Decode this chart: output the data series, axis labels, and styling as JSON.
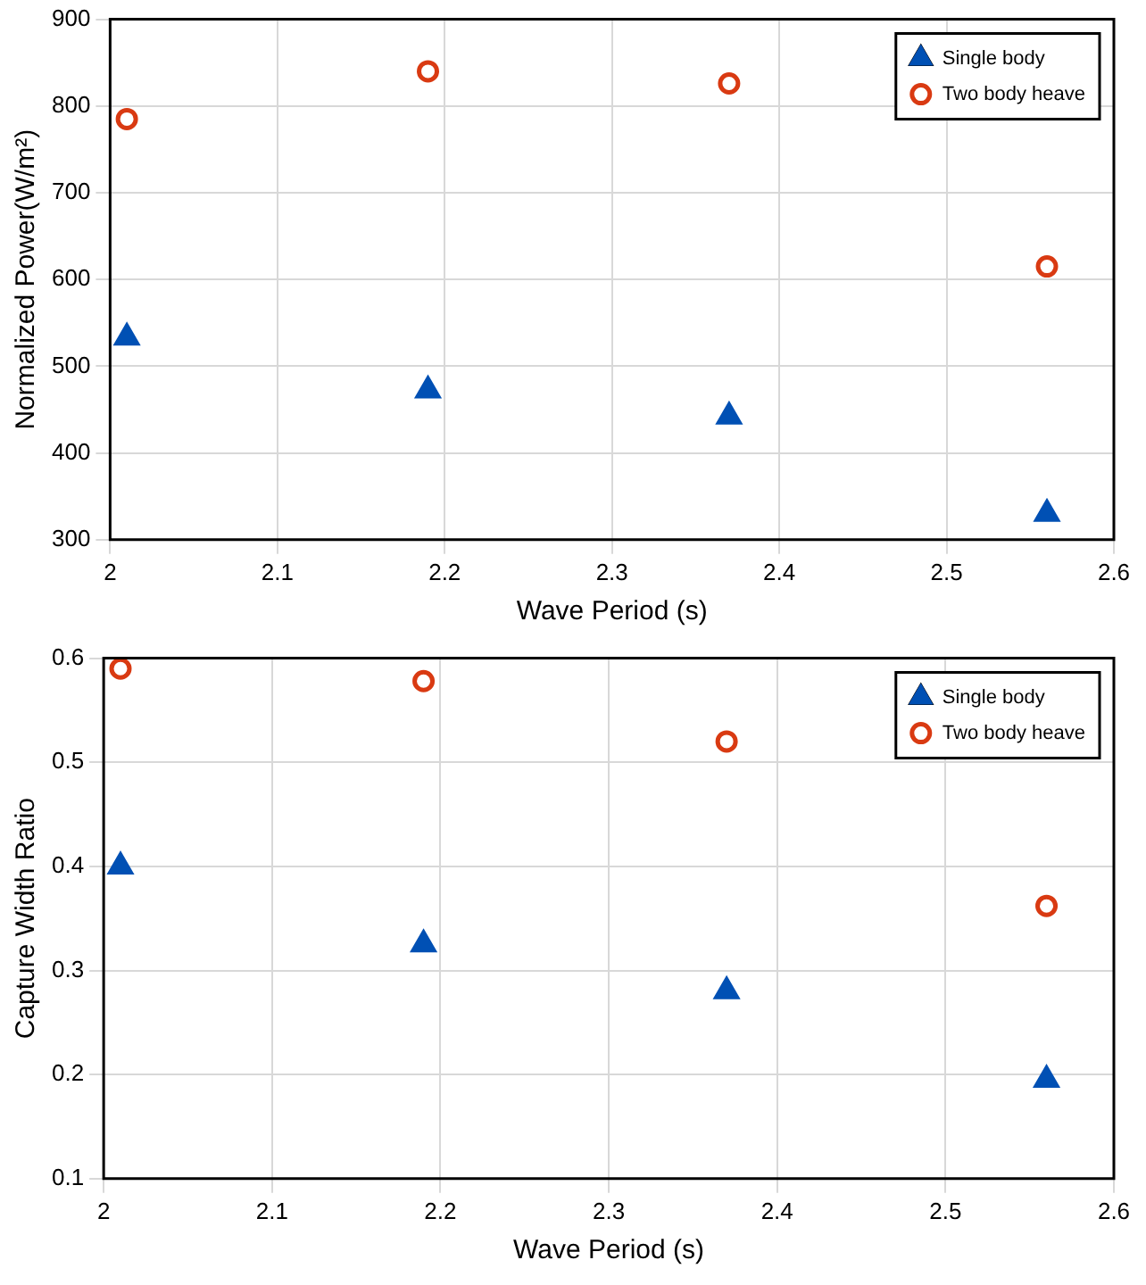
{
  "chart_data": [
    {
      "type": "scatter",
      "xlabel": "Wave Period (s)",
      "ylabel": "Normalized Power(W/m²)",
      "xlim": [
        2,
        2.6
      ],
      "xticks": [
        2,
        2.1,
        2.2,
        2.3,
        2.4,
        2.5,
        2.6
      ],
      "ylim": [
        300,
        900
      ],
      "yticks": [
        300,
        400,
        500,
        600,
        700,
        800,
        900
      ],
      "grid": true,
      "legend": "top right",
      "series": [
        {
          "name": "Single body",
          "color": "#0050b4",
          "marker": "triangle",
          "x": [
            2.01,
            2.19,
            2.37,
            2.56
          ],
          "values": [
            533,
            472,
            442,
            330
          ]
        },
        {
          "name": "Two body heave",
          "color": "#d93a12",
          "marker": "circle",
          "x": [
            2.01,
            2.19,
            2.37,
            2.56
          ],
          "values": [
            785,
            840,
            826,
            615
          ]
        }
      ]
    },
    {
      "type": "scatter",
      "xlabel": "Wave Period (s)",
      "ylabel": "Capture Width Ratio",
      "xlim": [
        2,
        2.6
      ],
      "xticks": [
        2,
        2.1,
        2.2,
        2.3,
        2.4,
        2.5,
        2.6
      ],
      "ylim": [
        0.1,
        0.6
      ],
      "yticks": [
        0.1,
        0.2,
        0.3,
        0.4,
        0.5,
        0.6
      ],
      "grid": true,
      "legend": "top right",
      "series": [
        {
          "name": "Single body",
          "color": "#0050b4",
          "marker": "triangle",
          "x": [
            2.01,
            2.19,
            2.37,
            2.56
          ],
          "values": [
            0.4,
            0.325,
            0.28,
            0.195
          ]
        },
        {
          "name": "Two body heave",
          "color": "#d93a12",
          "marker": "circle",
          "x": [
            2.01,
            2.19,
            2.37,
            2.56
          ],
          "values": [
            0.59,
            0.578,
            0.52,
            0.362
          ]
        }
      ]
    }
  ]
}
